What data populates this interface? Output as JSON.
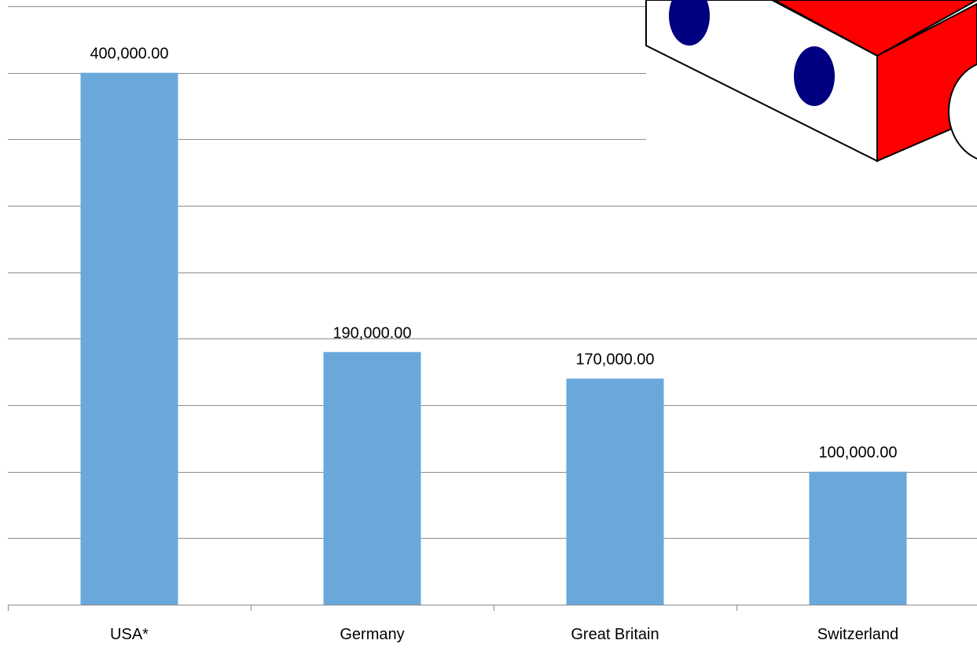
{
  "chart_data": {
    "type": "bar",
    "title": "",
    "xlabel": "",
    "ylabel": "",
    "categories": [
      "USA*",
      "Germany",
      "Great Britain",
      "Switzerland"
    ],
    "values": [
      400000,
      190000,
      170000,
      100000
    ],
    "value_labels": [
      "400,000.00",
      "190,000.00",
      "170,000.00",
      "100,000.00"
    ],
    "ylim": [
      0,
      450000
    ],
    "y_gridline_step": 50000,
    "grid": true,
    "legend": "none",
    "axis_tick_labels_visible": false
  },
  "colors": {
    "bar": "#6aa8db",
    "gridline": "#8c8c8c",
    "axis": "#8c8c8c",
    "decoration_red": "#ff0000",
    "decoration_dots": "#000080"
  },
  "decoration": {
    "icon": "toy-block-car-icon"
  }
}
